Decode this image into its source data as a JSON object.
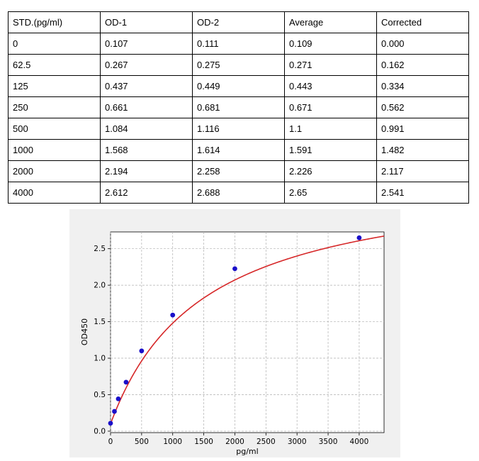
{
  "table": {
    "headers": [
      "STD.(pg/ml)",
      "OD-1",
      "OD-2",
      "Average",
      "Corrected"
    ],
    "rows": [
      [
        "0",
        "0.107",
        "0.111",
        "0.109",
        "0.000"
      ],
      [
        "62.5",
        "0.267",
        "0.275",
        "0.271",
        "0.162"
      ],
      [
        "125",
        "0.437",
        "0.449",
        "0.443",
        "0.334"
      ],
      [
        "250",
        "0.661",
        "0.681",
        "0.671",
        "0.562"
      ],
      [
        "500",
        "1.084",
        "1.116",
        "1.1",
        "0.991"
      ],
      [
        "1000",
        "1.568",
        "1.614",
        "1.591",
        "1.482"
      ],
      [
        "2000",
        "2.194",
        "2.258",
        "2.226",
        "2.117"
      ],
      [
        "4000",
        "2.612",
        "2.688",
        "2.65",
        "2.541"
      ]
    ]
  },
  "chart_data": {
    "type": "scatter",
    "title": "",
    "xlabel": "pg/ml",
    "ylabel": "OD450",
    "xlim": [
      0,
      4400
    ],
    "ylim": [
      -0.02,
      2.73
    ],
    "xticks": [
      0,
      500,
      1000,
      1500,
      2000,
      2500,
      3000,
      3500,
      4000
    ],
    "yticks": [
      0.0,
      0.5,
      1.0,
      1.5,
      2.0,
      2.5
    ],
    "ytick_labels": [
      "0.0",
      "0.5",
      "1.0",
      "1.5",
      "2.0",
      "2.5"
    ],
    "grid": true,
    "points": {
      "x": [
        0,
        62.5,
        125,
        250,
        500,
        1000,
        2000,
        4000
      ],
      "y": [
        0.109,
        0.271,
        0.443,
        0.671,
        1.1,
        1.591,
        2.226,
        2.65
      ]
    },
    "fit_curve": {
      "model": "4PL",
      "A": 0.1,
      "B": 1.0,
      "C": 1500,
      "D": 3.55,
      "x_range": [
        0,
        4400
      ]
    },
    "colors": {
      "points": "#1a0fc9",
      "curve": "#d62728",
      "background": "#f0f0f0",
      "grid": "#b0b0b0"
    }
  }
}
